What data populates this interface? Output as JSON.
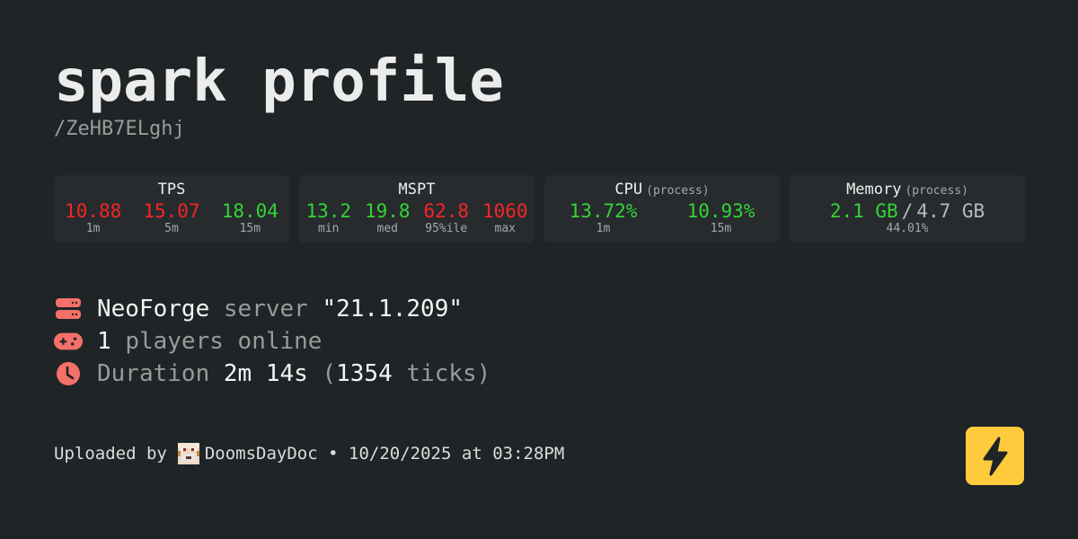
{
  "header": {
    "title": "spark profile",
    "code": "/ZeHB7ELghj"
  },
  "colors": {
    "bad": "#f42525",
    "good": "#33d433",
    "accent": "#f47068",
    "logo": "#ffcb3d"
  },
  "cards": {
    "tps": {
      "title": "TPS",
      "items": [
        {
          "value": "10.88",
          "label": "1m",
          "status": "bad"
        },
        {
          "value": "15.07",
          "label": "5m",
          "status": "bad"
        },
        {
          "value": "18.04",
          "label": "15m",
          "status": "good"
        }
      ]
    },
    "mspt": {
      "title": "MSPT",
      "items": [
        {
          "value": "13.2",
          "label": "min",
          "status": "good"
        },
        {
          "value": "19.8",
          "label": "med",
          "status": "good"
        },
        {
          "value": "62.8",
          "label": "95%ile",
          "status": "bad"
        },
        {
          "value": "1060",
          "label": "max",
          "status": "bad"
        }
      ]
    },
    "cpu": {
      "title": "CPU",
      "qualifier": "(process)",
      "items": [
        {
          "value": "13.72%",
          "label": "1m",
          "status": "good"
        },
        {
          "value": "10.93%",
          "label": "15m",
          "status": "good"
        }
      ]
    },
    "memory": {
      "title": "Memory",
      "qualifier": "(process)",
      "used": "2.1 GB",
      "sep": "/",
      "total": "4.7 GB",
      "percent": "44.01%"
    }
  },
  "info": {
    "platform": "NeoForge",
    "server_word": "server",
    "version": "\"21.1.209\"",
    "players": "1",
    "players_text": "players online",
    "duration_label": "Duration",
    "duration": "2m 14s",
    "ticks_open": "(",
    "ticks": "1354",
    "ticks_text": "ticks)",
    "icons": [
      "server-icon",
      "gamepad-icon",
      "clock-icon"
    ]
  },
  "footer": {
    "prefix": "Uploaded by",
    "user": "DoomsDayDoc",
    "sep": "•",
    "date": "10/20/2025 at 03:28PM"
  },
  "logo_icon": "lightning-bolt-icon"
}
